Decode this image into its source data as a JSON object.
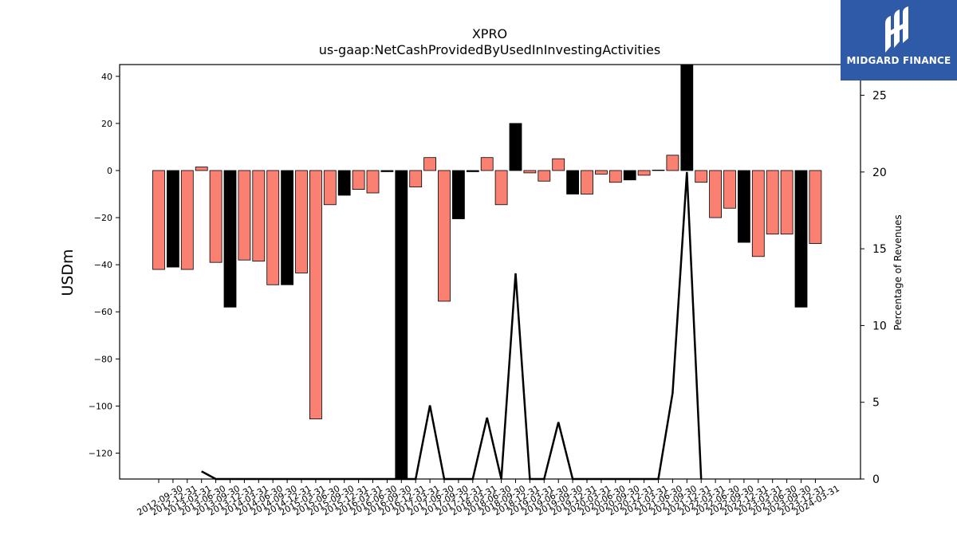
{
  "logo": {
    "text": "MIDGARD FINANCE",
    "icon": "midgard-m-logo-icon",
    "background": "#2f5aa8"
  },
  "colors": {
    "positive_bar": "#000000",
    "negative_bar": "#fa8072",
    "line": "#000000"
  },
  "chart_data": {
    "type": "bar",
    "title": "XPRO",
    "subtitle": "us-gaap:NetCashProvidedByUsedInInvestingActivities",
    "ylabel": "USDm",
    "y2label": "Percentage of Revenues",
    "ylim": [
      -131,
      45
    ],
    "y2lim": [
      0,
      27
    ],
    "yticks": [
      40,
      20,
      0,
      -20,
      -40,
      -60,
      -80,
      -100,
      -120
    ],
    "yticklabels": [
      "40",
      "20",
      "0",
      "−20",
      "−40",
      "−60",
      "−80",
      "−100",
      "−120"
    ],
    "y2ticks": [
      0,
      5,
      10,
      15,
      20,
      25
    ],
    "y2ticklabels": [
      "0",
      "5",
      "10",
      "15",
      "20",
      "25"
    ],
    "categories": [
      "2012-09-30",
      "2012-12-31",
      "2013-03-31",
      "2013-06-30",
      "2013-09-30",
      "2013-12-31",
      "2014-03-31",
      "2014-06-30",
      "2014-09-30",
      "2014-12-31",
      "2015-03-31",
      "2015-06-30",
      "2015-09-30",
      "2015-12-31",
      "2016-03-31",
      "2016-06-30",
      "2016-09-30",
      "2016-12-31",
      "2017-03-31",
      "2017-06-30",
      "2017-09-30",
      "2017-12-31",
      "2018-03-31",
      "2018-06-30",
      "2018-09-30",
      "2018-12-31",
      "2019-03-31",
      "2019-06-30",
      "2019-09-30",
      "2019-12-31",
      "2020-03-31",
      "2020-06-30",
      "2020-09-30",
      "2020-12-31",
      "2021-03-31",
      "2021-06-30",
      "2021-09-30",
      "2021-12-31",
      "2022-03-31",
      "2022-06-30",
      "2022-09-30",
      "2022-12-31",
      "2023-03-31",
      "2023-06-30",
      "2023-09-30",
      "2023-12-31",
      "2024-03-31"
    ],
    "xticklabels": [
      "2012-09-30",
      "2012-12-31",
      "2013-03-31",
      "2013-06-30",
      "2013-09-30",
      "2013-12-31",
      "2014-03-31",
      "2014-06-30",
      "2014-09-30",
      "2014-12-31",
      "2015-03-31",
      "2015-06-30",
      "2015-09-30",
      "2015-12-31",
      "2016-03-31",
      "2016-06-30",
      "2016-09-30",
      "2016-12-31",
      "2017-03-31",
      "2017-06-30",
      "2017-09-30",
      "2017-12-31",
      "2018-03-31",
      "2018-06-30",
      "2018-09-30",
      "2018-12-31",
      "2019-03-31",
      "2019-06-30",
      "2019-09-30",
      "2019-12-31",
      "2020-03-31",
      "2020-06-30",
      "2020-09-30",
      "2020-12-31",
      "2021-03-31",
      "2021-06-30",
      "2021-09-30",
      "2021-12-31",
      "2022-03-31",
      "2022-06-30",
      "2022-09-30",
      "2022-12-31",
      "2023-03-31",
      "2023-06-30",
      "2023-09-30",
      "2023-12-31",
      "2024-03-31"
    ],
    "values": [
      -42,
      -41,
      -42,
      1.5,
      -39,
      -58,
      -38,
      -38.5,
      -48.5,
      -48.5,
      -43.5,
      -105.5,
      -14.5,
      -10.5,
      -8,
      -9.5,
      -0.5,
      -131,
      -7,
      5.5,
      -55.5,
      -20.5,
      -0.5,
      5.5,
      -14.5,
      20,
      -1,
      -4.5,
      5,
      -10,
      -10,
      -1.5,
      -5,
      -4,
      -2,
      0.2,
      6.5,
      45,
      -5,
      -20,
      -16,
      -30.5,
      -36.5,
      -27,
      -27,
      -58,
      -31
    ],
    "bar_colors": [
      "salmon",
      "black",
      "salmon",
      "salmon",
      "salmon",
      "black",
      "salmon",
      "salmon",
      "salmon",
      "black",
      "salmon",
      "salmon",
      "salmon",
      "black",
      "salmon",
      "salmon",
      "black",
      "black",
      "salmon",
      "salmon",
      "salmon",
      "black",
      "black",
      "salmon",
      "salmon",
      "black",
      "salmon",
      "salmon",
      "salmon",
      "black",
      "salmon",
      "salmon",
      "salmon",
      "black",
      "salmon",
      "black",
      "salmon",
      "black",
      "salmon",
      "salmon",
      "salmon",
      "black",
      "salmon",
      "salmon",
      "salmon",
      "black",
      "salmon"
    ],
    "line_series": {
      "axis": "right",
      "values": [
        null,
        null,
        null,
        0.5,
        0,
        0,
        0,
        0,
        0,
        0,
        0,
        0,
        0,
        0,
        0,
        0,
        0,
        0,
        0,
        4.8,
        0,
        0,
        0,
        4,
        0,
        13.4,
        0,
        0,
        3.7,
        0,
        0,
        0,
        0,
        0,
        0,
        0,
        5.6,
        20,
        0,
        null,
        null,
        null,
        null,
        null,
        null,
        null,
        null
      ]
    },
    "grid": false
  }
}
